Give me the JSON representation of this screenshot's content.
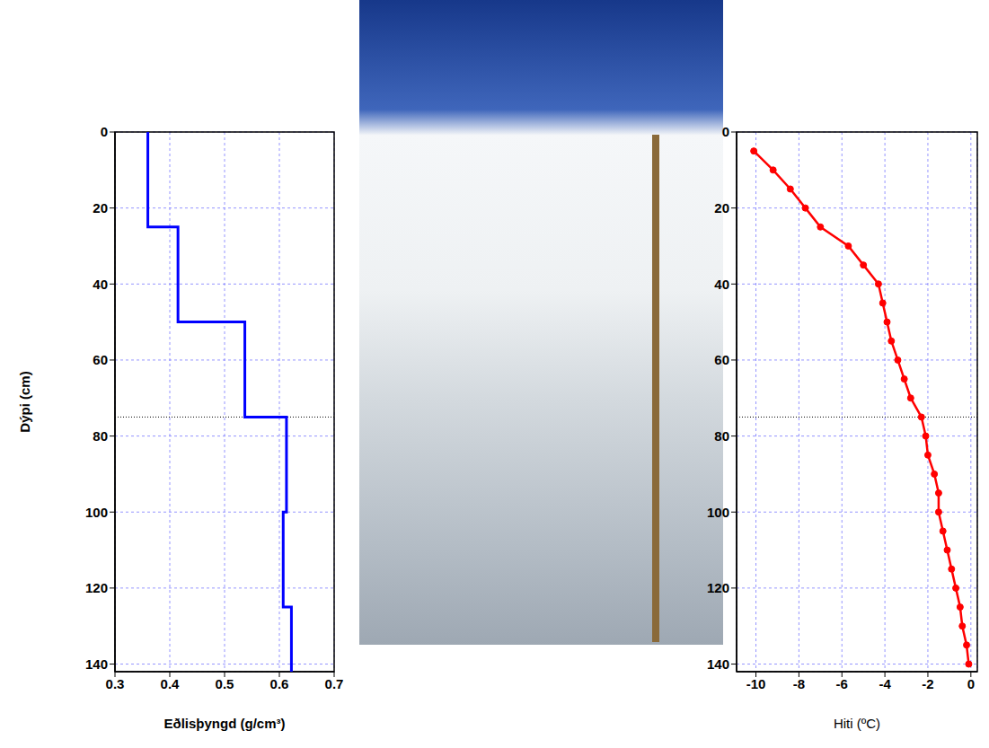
{
  "chart_data": [
    {
      "type": "line",
      "x_label": "Eðlisþyngd (g/cm³)",
      "y_label": "Dýpi (cm)",
      "x": [
        0.36,
        0.36,
        0.415,
        0.415,
        0.537,
        0.537,
        0.613,
        0.613,
        0.607,
        0.607,
        0.622,
        0.622
      ],
      "y": [
        0,
        25,
        25,
        50,
        50,
        75,
        75,
        100,
        100,
        125,
        125,
        142
      ],
      "color": "#0000ff",
      "marker": "none",
      "xlim": [
        0.3,
        0.7
      ],
      "xticks": [
        0.3,
        0.4,
        0.5,
        0.6,
        0.7
      ],
      "ylim": [
        0,
        142
      ],
      "yticks": [
        0,
        20,
        40,
        60,
        80,
        100,
        120,
        140
      ],
      "grid": true,
      "reference_depth": 75
    },
    {
      "type": "line",
      "x_label": "Hiti (ºC)",
      "x": [
        -10.1,
        -9.2,
        -8.4,
        -7.7,
        -7.0,
        -5.7,
        -5.0,
        -4.3,
        -4.1,
        -3.9,
        -3.7,
        -3.4,
        -3.1,
        -2.8,
        -2.3,
        -2.1,
        -2.0,
        -1.7,
        -1.5,
        -1.5,
        -1.3,
        -1.1,
        -0.9,
        -0.7,
        -0.5,
        -0.4,
        -0.2,
        -0.1
      ],
      "y": [
        5,
        10,
        15,
        20,
        25,
        30,
        35,
        40,
        45,
        50,
        55,
        60,
        65,
        70,
        75,
        80,
        85,
        90,
        95,
        100,
        105,
        110,
        115,
        120,
        125,
        130,
        135,
        140
      ],
      "color": "#ff0000",
      "marker": "circle",
      "xlim": [
        -10.9,
        0.3
      ],
      "xticks": [
        -10,
        -8,
        -6,
        -4,
        -2,
        0
      ],
      "ylim": [
        0,
        142
      ],
      "yticks": [
        0,
        20,
        40,
        60,
        80,
        100,
        120,
        140
      ],
      "grid": true,
      "reference_depth": 75
    }
  ]
}
